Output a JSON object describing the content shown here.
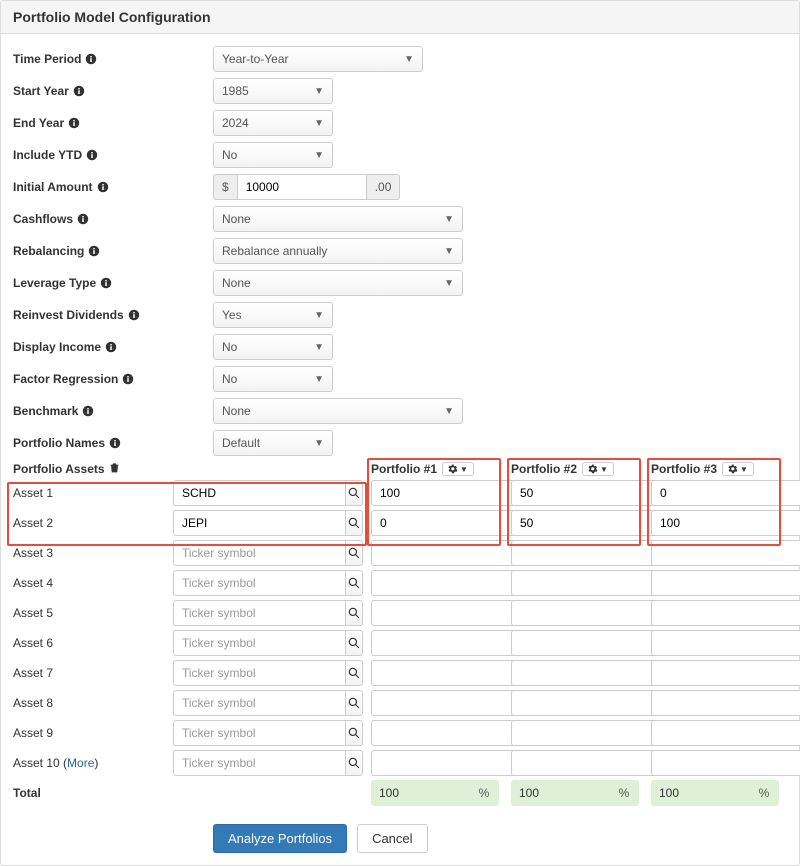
{
  "panel": {
    "title": "Portfolio Model Configuration"
  },
  "fields": {
    "time_period": {
      "label": "Time Period",
      "value": "Year-to-Year"
    },
    "start_year": {
      "label": "Start Year",
      "value": "1985"
    },
    "end_year": {
      "label": "End Year",
      "value": "2024"
    },
    "include_ytd": {
      "label": "Include YTD",
      "value": "No"
    },
    "initial_amount": {
      "label": "Initial Amount",
      "prefix": "$",
      "value": "10000",
      "suffix": ".00"
    },
    "cashflows": {
      "label": "Cashflows",
      "value": "None"
    },
    "rebalancing": {
      "label": "Rebalancing",
      "value": "Rebalance annually"
    },
    "leverage": {
      "label": "Leverage Type",
      "value": "None"
    },
    "reinvest": {
      "label": "Reinvest Dividends",
      "value": "Yes"
    },
    "display_income": {
      "label": "Display Income",
      "value": "No"
    },
    "factor_regression": {
      "label": "Factor Regression",
      "value": "No"
    },
    "benchmark": {
      "label": "Benchmark",
      "value": "None"
    },
    "portfolio_names": {
      "label": "Portfolio Names",
      "value": "Default"
    }
  },
  "assets_header": "Portfolio Assets",
  "portfolios": [
    {
      "label": "Portfolio #1"
    },
    {
      "label": "Portfolio #2"
    },
    {
      "label": "Portfolio #3"
    }
  ],
  "ticker_placeholder": "Ticker symbol",
  "assets": [
    {
      "label": "Asset 1",
      "ticker": "SCHD",
      "alloc": [
        "100",
        "50",
        "0"
      ]
    },
    {
      "label": "Asset 2",
      "ticker": "JEPI",
      "alloc": [
        "0",
        "50",
        "100"
      ]
    },
    {
      "label": "Asset 3",
      "ticker": "",
      "alloc": [
        "",
        "",
        ""
      ]
    },
    {
      "label": "Asset 4",
      "ticker": "",
      "alloc": [
        "",
        "",
        ""
      ]
    },
    {
      "label": "Asset 5",
      "ticker": "",
      "alloc": [
        "",
        "",
        ""
      ]
    },
    {
      "label": "Asset 6",
      "ticker": "",
      "alloc": [
        "",
        "",
        ""
      ]
    },
    {
      "label": "Asset 7",
      "ticker": "",
      "alloc": [
        "",
        "",
        ""
      ]
    },
    {
      "label": "Asset 8",
      "ticker": "",
      "alloc": [
        "",
        "",
        ""
      ]
    },
    {
      "label": "Asset 9",
      "ticker": "",
      "alloc": [
        "",
        "",
        ""
      ]
    },
    {
      "label": "Asset 10",
      "ticker": "",
      "alloc": [
        "",
        "",
        ""
      ]
    }
  ],
  "more_label": "More",
  "total": {
    "label": "Total",
    "values": [
      "100",
      "100",
      "100"
    ]
  },
  "pct": "%",
  "actions": {
    "analyze": "Analyze Portfolios",
    "cancel": "Cancel"
  },
  "colors": {
    "highlight": "#e74c3c",
    "total_bg": "#dff0d8",
    "primary": "#337ab7"
  }
}
